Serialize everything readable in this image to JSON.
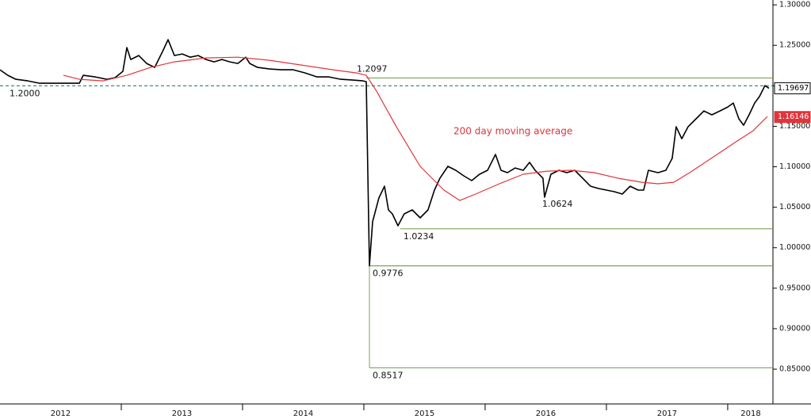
{
  "chart_data": {
    "type": "line",
    "xlim": [
      2012,
      2018.373
    ],
    "ylim": [
      0.807,
      1.306
    ],
    "xticks": [
      {
        "value": 2012.5,
        "label": "2012"
      },
      {
        "value": 2013.5,
        "label": "2013"
      },
      {
        "value": 2014.5,
        "label": "2014"
      },
      {
        "value": 2015.5,
        "label": "2015"
      },
      {
        "value": 2016.5,
        "label": "2016"
      },
      {
        "value": 2017.5,
        "label": "2017"
      },
      {
        "value": 2018.19,
        "label": "2018"
      }
    ],
    "yticks": [
      {
        "value": 0.85,
        "label": "0.85000"
      },
      {
        "value": 0.9,
        "label": "0.90000"
      },
      {
        "value": 0.95,
        "label": "0.95000"
      },
      {
        "value": 1.0,
        "label": "1.00000"
      },
      {
        "value": 1.05,
        "label": "1.05000"
      },
      {
        "value": 1.1,
        "label": "1.10000"
      },
      {
        "value": 1.15,
        "label": "1.15000"
      },
      {
        "value": 1.2,
        "label": "1.20000"
      },
      {
        "value": 1.25,
        "label": "1.25000"
      },
      {
        "value": 1.3,
        "label": "1.30000"
      }
    ],
    "series": [
      {
        "color": "#000000",
        "last_value": 1.19697,
        "last_box": "outline",
        "x": [
          2012.0,
          2012.065,
          2012.131,
          2012.229,
          2012.327,
          2012.458,
          2012.654,
          2012.686,
          2012.784,
          2012.882,
          2012.948,
          2013.013,
          2013.046,
          2013.078,
          2013.144,
          2013.209,
          2013.275,
          2013.34,
          2013.386,
          2013.438,
          2013.503,
          2013.569,
          2013.634,
          2013.699,
          2013.765,
          2013.83,
          2013.895,
          2013.961,
          2014.026,
          2014.059,
          2014.124,
          2014.222,
          2014.32,
          2014.418,
          2014.516,
          2014.614,
          2014.712,
          2014.81,
          2014.908,
          2014.993,
          2015.02,
          2015.046,
          2015.072,
          2015.124,
          2015.17,
          2015.203,
          2015.235,
          2015.281,
          2015.333,
          2015.399,
          2015.464,
          2015.529,
          2015.582,
          2015.627,
          2015.693,
          2015.758,
          2015.824,
          2015.889,
          2015.954,
          2016.02,
          2016.085,
          2016.131,
          2016.183,
          2016.248,
          2016.314,
          2016.366,
          2016.412,
          2016.477,
          2016.49,
          2016.542,
          2016.608,
          2016.673,
          2016.739,
          2016.804,
          2016.869,
          2016.935,
          2017.0,
          2017.065,
          2017.131,
          2017.196,
          2017.261,
          2017.307,
          2017.346,
          2017.425,
          2017.49,
          2017.542,
          2017.575,
          2017.621,
          2017.673,
          2017.739,
          2017.804,
          2017.869,
          2017.935,
          2018.0,
          2018.046,
          2018.092,
          2018.131,
          2018.176,
          2018.222,
          2018.261,
          2018.307,
          2018.34
        ],
        "values": [
          1.2198,
          1.213,
          1.2081,
          1.2061,
          1.2032,
          1.2032,
          1.2032,
          1.213,
          1.211,
          1.2081,
          1.21,
          1.2178,
          1.2472,
          1.2325,
          1.2374,
          1.2276,
          1.2227,
          1.2423,
          1.257,
          1.2374,
          1.2394,
          1.2354,
          1.2374,
          1.2325,
          1.2296,
          1.2325,
          1.2296,
          1.2276,
          1.2354,
          1.2276,
          1.2227,
          1.2208,
          1.2198,
          1.2198,
          1.2159,
          1.211,
          1.211,
          1.2081,
          1.2071,
          1.2061,
          1.2051,
          0.9776,
          1.032,
          1.0614,
          1.076,
          1.0467,
          1.0418,
          1.0271,
          1.0418,
          1.0467,
          1.0369,
          1.0467,
          1.0712,
          1.0858,
          1.1005,
          1.0956,
          1.0888,
          1.0829,
          1.0907,
          1.0956,
          1.1152,
          1.0956,
          1.0927,
          1.0985,
          1.0956,
          1.1054,
          1.0956,
          1.0858,
          1.0624,
          1.0907,
          1.0956,
          1.0927,
          1.0956,
          1.0858,
          1.076,
          1.0731,
          1.0712,
          1.0692,
          1.0663,
          1.076,
          1.0712,
          1.0712,
          1.0956,
          1.0927,
          1.0956,
          1.1103,
          1.1494,
          1.1347,
          1.1494,
          1.1592,
          1.1689,
          1.1641,
          1.1689,
          1.1738,
          1.1787,
          1.1592,
          1.1513,
          1.1641,
          1.1787,
          1.1866,
          1.2002,
          1.197
        ]
      },
      {
        "name": "200 day moving average",
        "color": "#e0353b",
        "last_value": 1.16146,
        "last_box": "filled",
        "x": [
          2012.523,
          2012.654,
          2012.85,
          2013.046,
          2013.242,
          2013.438,
          2013.699,
          2013.961,
          2014.222,
          2014.484,
          2014.745,
          2014.941,
          2015.02,
          2015.105,
          2015.268,
          2015.464,
          2015.66,
          2015.791,
          2015.922,
          2016.118,
          2016.314,
          2016.51,
          2016.706,
          2016.902,
          2017.098,
          2017.294,
          2017.425,
          2017.556,
          2017.686,
          2017.882,
          2018.078,
          2018.209,
          2018.327
        ],
        "values": [
          1.213,
          1.2081,
          1.2061,
          1.213,
          1.2227,
          1.2296,
          1.2345,
          1.2354,
          1.2315,
          1.2257,
          1.2198,
          1.2159,
          1.213,
          1.1934,
          1.1494,
          1.1005,
          1.0712,
          1.0584,
          1.0663,
          1.079,
          1.0907,
          1.0946,
          1.0956,
          1.0927,
          1.0858,
          1.0809,
          1.079,
          1.0809,
          1.0927,
          1.1122,
          1.1318,
          1.1445,
          1.1621
        ]
      }
    ],
    "levels": [
      {
        "value": 1.2097,
        "label": "1.2097",
        "x": 2015.02,
        "style": "solid",
        "label_pos": "above"
      },
      {
        "value": 1.2,
        "label": "1.2000",
        "x": 2012.0,
        "style": "dashed",
        "label_pos": "below"
      },
      {
        "value": 1.0234,
        "label": "1.0234",
        "x": 2015.3,
        "style": "solid",
        "label_pos": "below"
      },
      {
        "value": 0.9776,
        "label": "0.9776",
        "x": 2015.046,
        "style": "solid",
        "label_pos": "below"
      },
      {
        "value": 0.8517,
        "label": "0.8517",
        "x": 2015.046,
        "style": "solid",
        "label_pos": "below"
      }
    ],
    "annotations": [
      {
        "text": "1.0624",
        "x": 2016.49,
        "y": 1.0624
      }
    ]
  }
}
